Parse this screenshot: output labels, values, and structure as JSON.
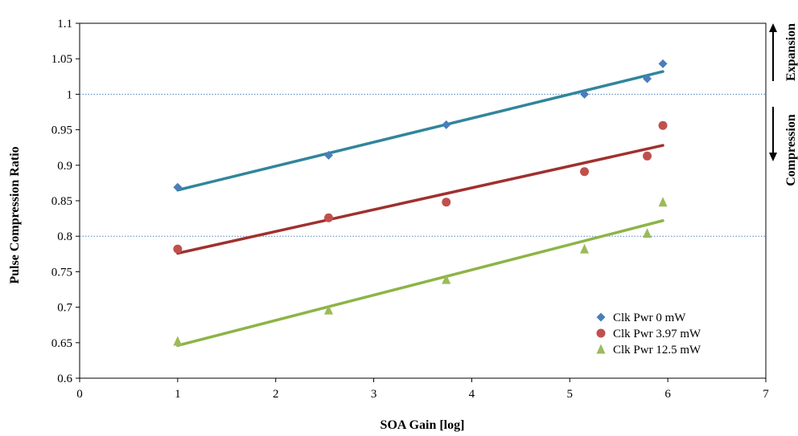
{
  "chart_data": {
    "type": "scatter",
    "title": "",
    "xlabel": "SOA Gain [log]",
    "ylabel": "Pulse Compression Ratio",
    "xlim": [
      0,
      7
    ],
    "ylim": [
      0.6,
      1.1
    ],
    "xticks": [
      "0",
      "1",
      "2",
      "3",
      "4",
      "5",
      "6",
      "7"
    ],
    "yticks": [
      "0.6",
      "0.65",
      "0.7",
      "0.75",
      "0.8",
      "0.85",
      "0.9",
      "0.95",
      "1",
      "1.05",
      "1.1"
    ],
    "xtick_values": [
      0,
      1,
      2,
      3,
      4,
      5,
      6,
      7
    ],
    "ytick_values": [
      0.6,
      0.65,
      0.7,
      0.75,
      0.8,
      0.85,
      0.9,
      0.95,
      1.0,
      1.05,
      1.1
    ],
    "grid": false,
    "reference_lines": [
      1.0,
      0.8
    ],
    "legend_position": "bottom-right",
    "series": [
      {
        "name": "Clk Pwr 0 mW",
        "marker": "diamond",
        "marker_color": "#4A7EBB",
        "trend_color": "#31859C",
        "x": [
          1.0,
          2.54,
          3.74,
          5.15,
          5.79,
          5.95
        ],
        "y": [
          0.869,
          0.914,
          0.957,
          1.0,
          1.022,
          1.043
        ],
        "trend": {
          "x": [
            1.0,
            5.95
          ],
          "y": [
            0.865,
            1.032
          ]
        }
      },
      {
        "name": "Clk Pwr 3.97 mW",
        "marker": "circle",
        "marker_color": "#C0504D",
        "trend_color": "#A0302E",
        "x": [
          1.0,
          2.54,
          3.74,
          5.15,
          5.79,
          5.95
        ],
        "y": [
          0.782,
          0.826,
          0.848,
          0.891,
          0.913,
          0.956
        ],
        "trend": {
          "x": [
            1.0,
            5.95
          ],
          "y": [
            0.776,
            0.928
          ]
        }
      },
      {
        "name": "Clk Pwr 12.5 mW",
        "marker": "triangle",
        "marker_color": "#9BBB59",
        "trend_color": "#8DB446",
        "x": [
          1.0,
          2.54,
          3.74,
          5.15,
          5.79,
          5.95
        ],
        "y": [
          0.652,
          0.696,
          0.739,
          0.782,
          0.804,
          0.848
        ],
        "trend": {
          "x": [
            1.0,
            5.95
          ],
          "y": [
            0.646,
            0.822
          ]
        }
      }
    ],
    "annotations": {
      "upper": "Expansion",
      "lower": "Compression"
    }
  }
}
